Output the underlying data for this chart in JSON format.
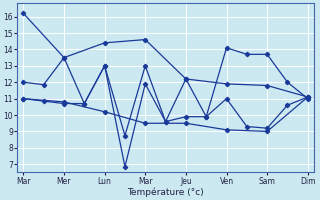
{
  "xlabel": "Température (°c)",
  "background_color": "#cce8f0",
  "grid_color": "#ffffff",
  "line_color": "#1a3a9a",
  "x_labels": [
    "Mar",
    "Mer",
    "Lun",
    "Mar",
    "Jeu",
    "Ven",
    "Sam",
    "Dim"
  ],
  "ylim": [
    6.5,
    16.8
  ],
  "yticks": [
    7,
    8,
    9,
    10,
    11,
    12,
    13,
    14,
    15,
    16
  ],
  "xlim": [
    -0.15,
    7.15
  ],
  "series": [
    {
      "x": [
        0,
        1,
        2,
        3,
        4,
        5,
        6,
        7
      ],
      "y": [
        16.2,
        13.5,
        14.4,
        14.6,
        12.2,
        11.9,
        11.8,
        11.1
      ]
    },
    {
      "x": [
        0,
        0.5,
        1,
        1.5,
        2,
        2.5,
        3,
        3.5,
        4,
        4.5,
        5,
        5.5,
        6,
        6.5,
        7
      ],
      "y": [
        12.0,
        11.85,
        13.5,
        10.7,
        13.0,
        8.75,
        13.0,
        9.6,
        12.2,
        9.9,
        11.0,
        9.3,
        9.2,
        10.6,
        11.1
      ]
    },
    {
      "x": [
        0,
        0.5,
        1,
        1.5,
        2,
        2.5,
        3,
        3.5,
        4,
        4.5,
        5,
        5.5,
        6,
        6.5,
        7
      ],
      "y": [
        11.0,
        10.85,
        10.7,
        10.7,
        13.0,
        6.85,
        11.9,
        9.6,
        9.9,
        9.9,
        14.1,
        13.7,
        13.7,
        12.0,
        11.0
      ]
    },
    {
      "x": [
        0,
        1,
        2,
        3,
        4,
        5,
        6,
        7
      ],
      "y": [
        11.0,
        10.8,
        10.2,
        9.5,
        9.5,
        9.1,
        9.0,
        11.1
      ]
    }
  ]
}
